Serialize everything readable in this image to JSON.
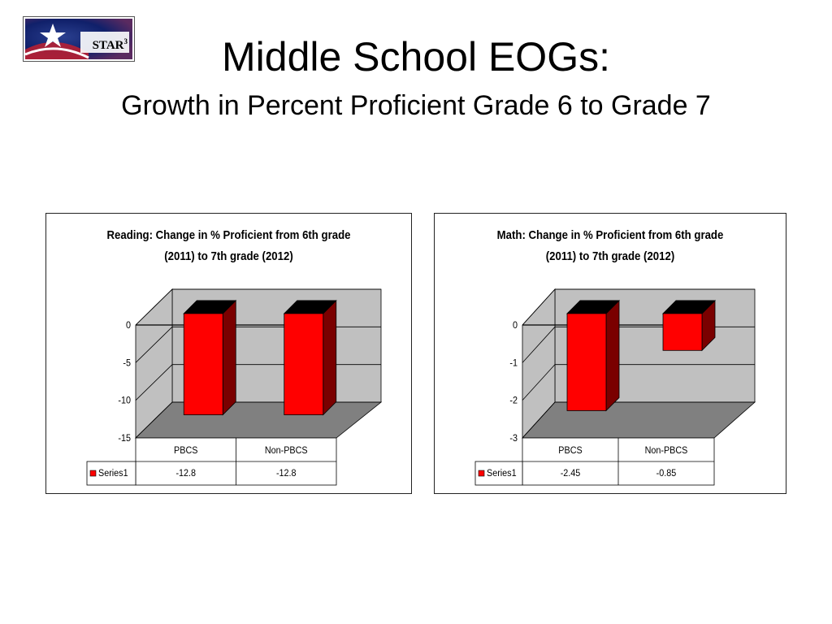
{
  "logo": {
    "text": "STAR",
    "superscript": "3"
  },
  "slide": {
    "title": "Middle School EOGs:",
    "subtitle": "Growth in Percent Proficient Grade 6 to Grade 7"
  },
  "colors": {
    "bar_front": "#ff0000",
    "bar_side": "#7a0000",
    "bar_top": "#000000",
    "wall": "#c0c0c0",
    "floor": "#808080"
  },
  "chart_data": [
    {
      "type": "bar",
      "title_lines": [
        "Reading: Change in % Proficient from 6th grade",
        "(2011) to 7th grade (2012)"
      ],
      "categories": [
        "PBCS",
        "Non-PBCS"
      ],
      "series": [
        {
          "name": "Series1",
          "values": [
            -12.8,
            -12.8
          ]
        }
      ],
      "value_labels": [
        "-12.8",
        "-12.8"
      ],
      "ylim": [
        -15,
        0
      ],
      "yticks": [
        0,
        -5,
        -10,
        -15
      ],
      "grid": true,
      "legend": "data table"
    },
    {
      "type": "bar",
      "title_lines": [
        "Math: Change in % Proficient from 6th grade",
        "(2011) to 7th grade (2012)"
      ],
      "categories": [
        "PBCS",
        "Non-PBCS"
      ],
      "series": [
        {
          "name": "Series1",
          "values": [
            -2.45,
            -0.85
          ]
        }
      ],
      "value_labels": [
        "-2.45",
        "-0.85"
      ],
      "ylim": [
        -3,
        0
      ],
      "yticks": [
        0,
        -1,
        -2,
        -3
      ],
      "grid": true,
      "legend": "data table"
    }
  ]
}
